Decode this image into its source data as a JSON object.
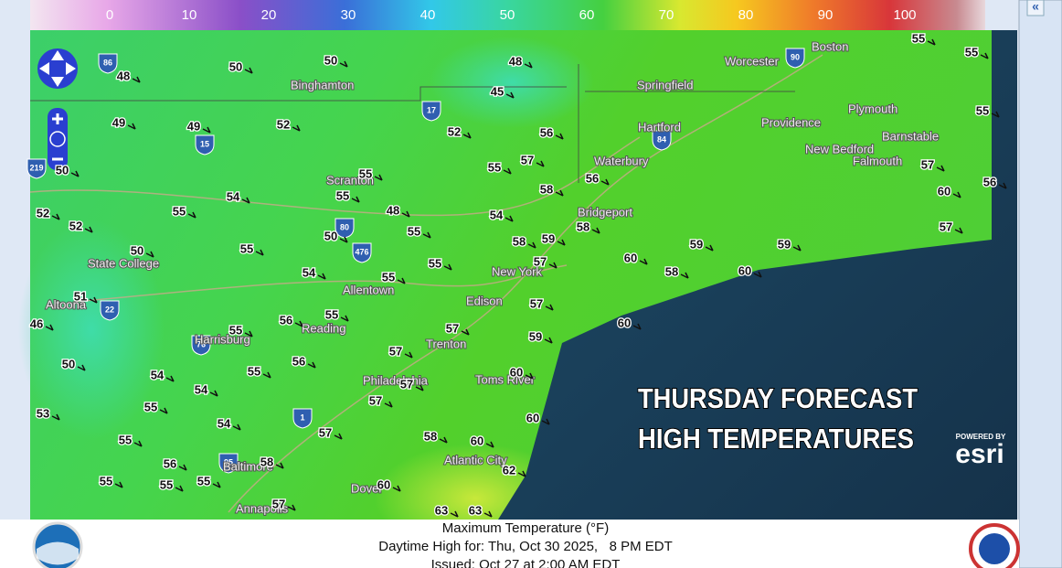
{
  "legend": {
    "ticks": [
      0,
      10,
      20,
      30,
      40,
      50,
      60,
      70,
      80,
      90,
      100
    ]
  },
  "overlay": {
    "line1": "THURSDAY FORECAST",
    "line2": "HIGH TEMPERATURES"
  },
  "attribution": {
    "powered_by": "POWERED BY",
    "brand": "esri"
  },
  "collapse_button": "«",
  "cities": [
    "Binghamton",
    "Worcester",
    "Boston",
    "Springfield",
    "Hartford",
    "Providence",
    "Plymouth",
    "New Bedford",
    "Barnstable",
    "Falmouth",
    "Waterbury",
    "Bridgeport",
    "Scranton",
    "State College",
    "Altoona",
    "Allentown",
    "Reading",
    "Harrisburg",
    "New York",
    "Edison",
    "Trenton",
    "Philadelphia",
    "Toms River",
    "Atlantic City",
    "Baltimore",
    "Dover",
    "Annapolis"
  ],
  "highways": [
    "86",
    "90",
    "17",
    "15",
    "219",
    "84",
    "80",
    "476",
    "22",
    "76",
    "1",
    "95"
  ],
  "temperatures": [
    48,
    50,
    50,
    48,
    45,
    55,
    55,
    55,
    49,
    49,
    52,
    52,
    56,
    55,
    57,
    58,
    56,
    50,
    55,
    55,
    54,
    55,
    48,
    54,
    55,
    52,
    52,
    58,
    59,
    58,
    55,
    50,
    50,
    60,
    57,
    59,
    59,
    60,
    56,
    57,
    57,
    54,
    55,
    55,
    58,
    60,
    51,
    57,
    46,
    56,
    55,
    60,
    55,
    57,
    59,
    50,
    57,
    56,
    54,
    55,
    60,
    57,
    54,
    57,
    55,
    53,
    60,
    54,
    57,
    58,
    60,
    55,
    56,
    58,
    62,
    55,
    55,
    55,
    60,
    57,
    63,
    63
  ],
  "footer": {
    "title": "Maximum Temperature (°F)",
    "valid": "Daytime High for: Thu, Oct 30 2025,   8 PM EDT",
    "issued": "Issued: Oct 27 at 2:00 AM EDT"
  }
}
